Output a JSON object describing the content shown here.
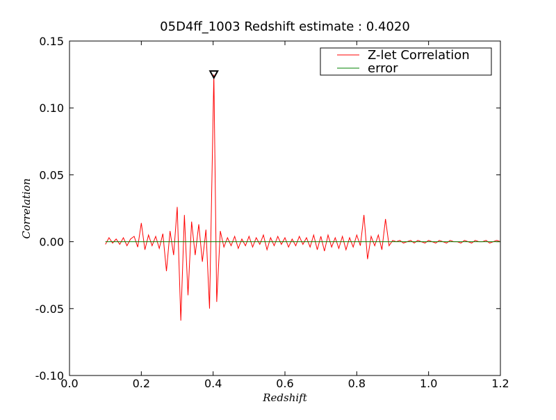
{
  "chart_data": {
    "type": "line",
    "title": "05D4ff_1003 Redshift estimate : 0.4020",
    "x_label": "Redshift",
    "y_label": "Correlation",
    "xlim": [
      0.0,
      1.2
    ],
    "ylim": [
      -0.1,
      0.15
    ],
    "xticks": [
      {
        "value": 0.0,
        "label": "0.0"
      },
      0.2,
      0.4,
      0.6,
      0.8,
      {
        "value": 1.0,
        "label": "1.0"
      },
      1.2
    ],
    "yticks": [
      {
        "value": -0.1,
        "label": "-0.10"
      },
      -0.05,
      {
        "value": 0.0,
        "label": "0.00"
      },
      0.05,
      {
        "value": 0.1,
        "label": "0.10"
      },
      0.15
    ],
    "legend": "upper right",
    "series": [
      {
        "name": "Z-let Correlation",
        "color": "#ff0000",
        "x": [
          0.1,
          0.11,
          0.12,
          0.13,
          0.14,
          0.15,
          0.16,
          0.17,
          0.18,
          0.19,
          0.2,
          0.21,
          0.22,
          0.23,
          0.24,
          0.25,
          0.26,
          0.27,
          0.28,
          0.29,
          0.3,
          0.31,
          0.32,
          0.33,
          0.34,
          0.35,
          0.36,
          0.37,
          0.38,
          0.39,
          0.402,
          0.41,
          0.42,
          0.43,
          0.44,
          0.45,
          0.46,
          0.47,
          0.48,
          0.49,
          0.5,
          0.51,
          0.52,
          0.53,
          0.54,
          0.55,
          0.56,
          0.57,
          0.58,
          0.59,
          0.6,
          0.61,
          0.62,
          0.63,
          0.64,
          0.65,
          0.66,
          0.67,
          0.68,
          0.69,
          0.7,
          0.71,
          0.72,
          0.73,
          0.74,
          0.75,
          0.76,
          0.77,
          0.78,
          0.79,
          0.8,
          0.81,
          0.82,
          0.83,
          0.84,
          0.85,
          0.86,
          0.87,
          0.88,
          0.89,
          0.9,
          0.91,
          0.92,
          0.93,
          0.94,
          0.95,
          0.96,
          0.97,
          0.98,
          0.99,
          1.0,
          1.01,
          1.02,
          1.03,
          1.04,
          1.05,
          1.06,
          1.07,
          1.08,
          1.09,
          1.1,
          1.11,
          1.12,
          1.13,
          1.14,
          1.15,
          1.16,
          1.17,
          1.18,
          1.19,
          1.2
        ],
        "values": [
          -0.002,
          0.003,
          -0.001,
          0.002,
          -0.002,
          0.003,
          -0.003,
          0.002,
          0.004,
          -0.004,
          0.014,
          -0.006,
          0.005,
          -0.003,
          0.004,
          -0.005,
          0.006,
          -0.022,
          0.008,
          -0.01,
          0.026,
          -0.059,
          0.02,
          -0.04,
          0.015,
          -0.01,
          0.013,
          -0.015,
          0.009,
          -0.05,
          0.125,
          -0.045,
          0.008,
          -0.004,
          0.003,
          -0.003,
          0.004,
          -0.005,
          0.002,
          -0.003,
          0.004,
          -0.004,
          0.003,
          -0.002,
          0.005,
          -0.006,
          0.003,
          -0.003,
          0.004,
          -0.002,
          0.003,
          -0.004,
          0.002,
          -0.003,
          0.004,
          -0.002,
          0.003,
          -0.004,
          0.005,
          -0.006,
          0.004,
          -0.007,
          0.005,
          -0.004,
          0.003,
          -0.005,
          0.004,
          -0.006,
          0.003,
          -0.004,
          0.005,
          -0.003,
          0.02,
          -0.013,
          0.004,
          -0.003,
          0.005,
          -0.006,
          0.017,
          -0.003,
          0.001,
          0.0,
          0.001,
          -0.001,
          0.0,
          0.001,
          -0.001,
          0.001,
          0.0,
          -0.001,
          0.001,
          0.0,
          -0.001,
          0.001,
          0.0,
          -0.001,
          0.001,
          0.0,
          0.0,
          -0.001,
          0.001,
          0.0,
          -0.001,
          0.001,
          0.0,
          0.0,
          0.001,
          -0.001,
          0.0,
          0.001,
          0.0
        ]
      },
      {
        "name": "error",
        "color": "#008000",
        "x": [
          0.1,
          0.2,
          0.3,
          0.4,
          0.5,
          0.6,
          0.7,
          0.8,
          0.9,
          1.0,
          1.1,
          1.2
        ],
        "values": [
          0,
          0,
          0,
          0,
          0,
          0,
          0,
          0,
          0,
          0,
          0,
          0
        ]
      }
    ],
    "markers": [
      {
        "x": 0.402,
        "y": 0.125
      }
    ]
  }
}
